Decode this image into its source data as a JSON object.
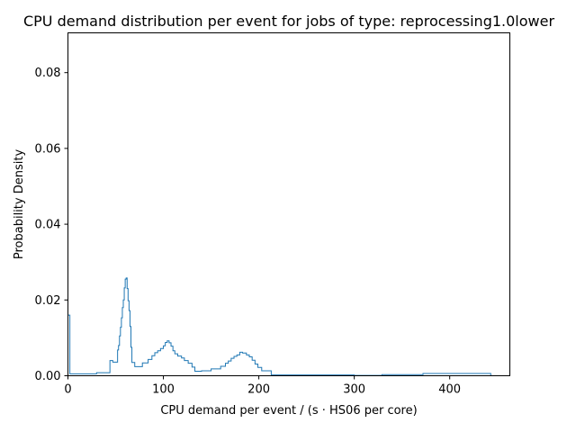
{
  "chart_data": {
    "type": "step histogram",
    "title": "CPU demand distribution per event for jobs of type: reprocessing1.0lower",
    "xlabel": "CPU demand per event / (s · HS06 per core)",
    "ylabel": "Probability Density",
    "xlim": [
      0,
      463
    ],
    "ylim": [
      0,
      0.0905
    ],
    "xticks": [
      0,
      100,
      200,
      300,
      400
    ],
    "xtick_labels": [
      "0",
      "100",
      "200",
      "300",
      "400"
    ],
    "yticks": [
      0.0,
      0.02,
      0.04,
      0.06,
      0.08
    ],
    "ytick_labels": [
      "0.00",
      "0.02",
      "0.04",
      "0.06",
      "0.08"
    ],
    "grid": false,
    "legend": "none",
    "line_color": "#1f77b4",
    "bin_edges": [
      0,
      2,
      30,
      44,
      47,
      52,
      53,
      54,
      55,
      56,
      57,
      58,
      59,
      60,
      61,
      62,
      63,
      64,
      65,
      66,
      67,
      68,
      70,
      73,
      78,
      84,
      88,
      91,
      94,
      97,
      100,
      102,
      104,
      106,
      108,
      110,
      112,
      115,
      119,
      122,
      126,
      130,
      133,
      140,
      150,
      160,
      165,
      168,
      171,
      174,
      177,
      180,
      183,
      187,
      190,
      193,
      196,
      199,
      203,
      213,
      300,
      329,
      372,
      443
    ],
    "densities": [
      0.016,
      0.0005,
      0.0008,
      0.004,
      0.0036,
      0.0068,
      0.008,
      0.0105,
      0.0128,
      0.0153,
      0.018,
      0.02,
      0.0232,
      0.0255,
      0.0258,
      0.023,
      0.0198,
      0.0172,
      0.013,
      0.0075,
      0.0035,
      0.0035,
      0.0024,
      0.0024,
      0.0034,
      0.0043,
      0.0053,
      0.0061,
      0.0066,
      0.0072,
      0.0079,
      0.0088,
      0.0092,
      0.0087,
      0.0078,
      0.0066,
      0.0058,
      0.0052,
      0.0047,
      0.004,
      0.0033,
      0.0023,
      0.0012,
      0.0013,
      0.0018,
      0.0025,
      0.0033,
      0.0039,
      0.0046,
      0.0051,
      0.0055,
      0.0062,
      0.006,
      0.0055,
      0.005,
      0.0041,
      0.0031,
      0.0022,
      0.0013,
      0.0002,
      0.0001,
      0.0003,
      0.0006
    ]
  }
}
